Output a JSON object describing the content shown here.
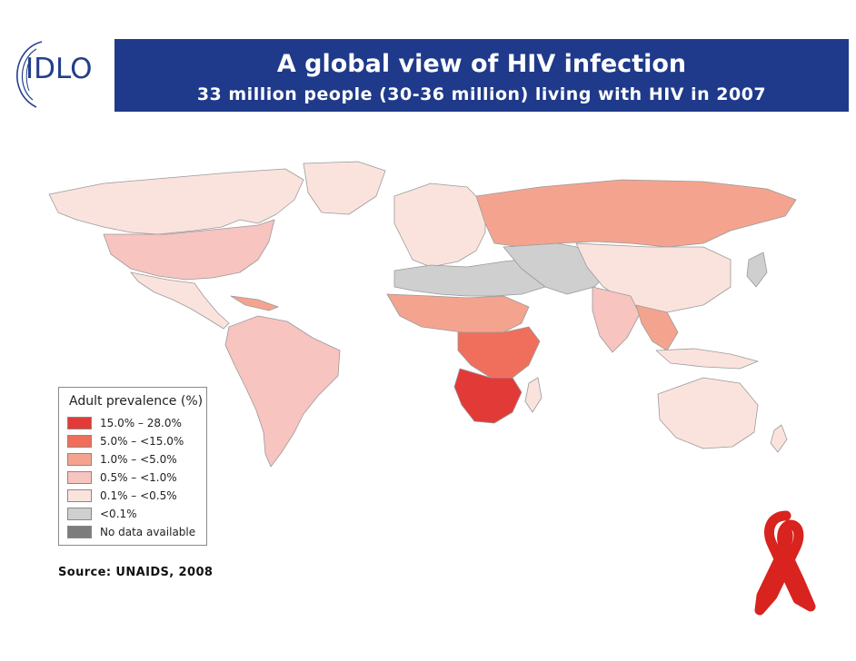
{
  "logo": {
    "text": "IDLO"
  },
  "header": {
    "title": "A global view of HIV infection",
    "subtitle": "33 million people (30-36 million) living with HIV in 2007"
  },
  "legend": {
    "title": "Adult prevalence (%)",
    "items": [
      {
        "label": "15.0% – 28.0%",
        "color": "#e23b37"
      },
      {
        "label": "5.0% – <15.0%",
        "color": "#ef6f5c"
      },
      {
        "label": "1.0% – <5.0%",
        "color": "#f4a48e"
      },
      {
        "label": "0.5% – <1.0%",
        "color": "#f7c4c0"
      },
      {
        "label": "0.1% – <0.5%",
        "color": "#fbe3dd"
      },
      {
        "label": "<0.1%",
        "color": "#cfcfcf"
      },
      {
        "label": "No data available",
        "color": "#7c7c7c"
      }
    ]
  },
  "source": "Source: UNAIDS, 2008",
  "colors": {
    "banner": "#1f3a8a",
    "ribbon": "#d8231f",
    "logo": "#233f8c"
  }
}
